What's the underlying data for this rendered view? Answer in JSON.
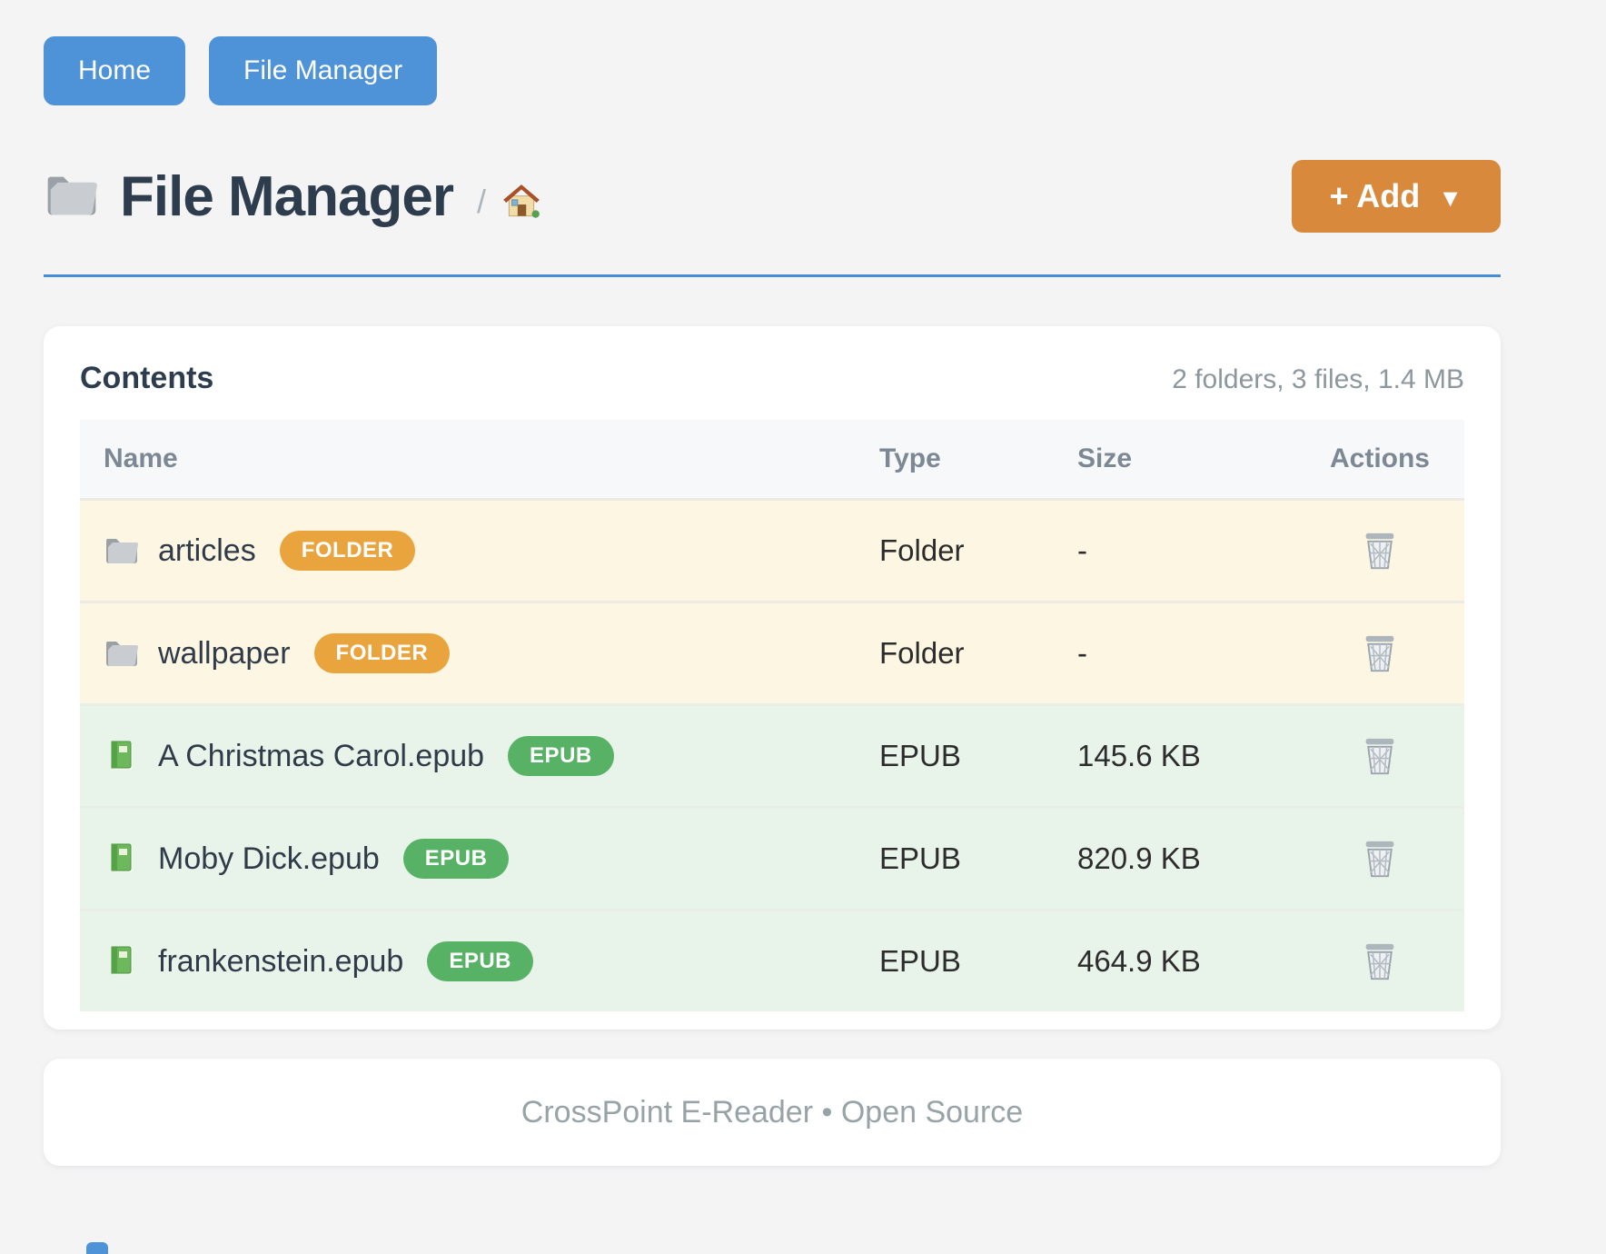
{
  "nav": {
    "home_label": "Home",
    "file_manager_label": "File Manager"
  },
  "header": {
    "title": "File Manager",
    "breadcrumb_separator": "/",
    "add_button_label": "+ Add",
    "add_button_caret": "▼"
  },
  "contents": {
    "title": "Contents",
    "summary": "2 folders, 3 files, 1.4 MB",
    "columns": [
      "Name",
      "Type",
      "Size",
      "Actions"
    ],
    "rows": [
      {
        "name": "articles",
        "badge": "FOLDER",
        "type": "Folder",
        "size": "-",
        "kind": "folder"
      },
      {
        "name": "wallpaper",
        "badge": "FOLDER",
        "type": "Folder",
        "size": "-",
        "kind": "folder"
      },
      {
        "name": "A Christmas Carol.epub",
        "badge": "EPUB",
        "type": "EPUB",
        "size": "145.6 KB",
        "kind": "epub"
      },
      {
        "name": "Moby Dick.epub",
        "badge": "EPUB",
        "type": "EPUB",
        "size": "820.9 KB",
        "kind": "epub"
      },
      {
        "name": "frankenstein.epub",
        "badge": "EPUB",
        "type": "EPUB",
        "size": "464.9 KB",
        "kind": "epub"
      }
    ]
  },
  "footer": {
    "text": "CrossPoint E-Reader • Open Source"
  },
  "colors": {
    "primary_blue": "#4e92d8",
    "divider_blue": "#448fd6",
    "accent_orange": "#d9893c",
    "badge_folder": "#e9a43e",
    "badge_epub": "#58b266",
    "row_folder_bg": "#fdf6e2",
    "row_epub_bg": "#e8f3e9",
    "page_bg": "#f4f4f5"
  }
}
